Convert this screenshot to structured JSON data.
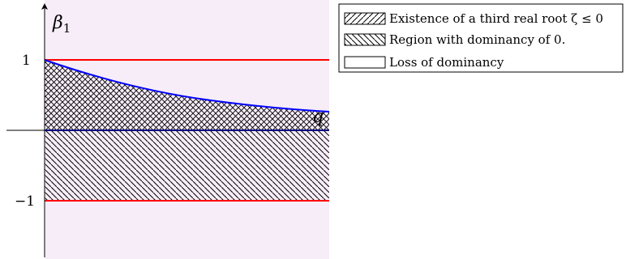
{
  "axes": {
    "y_label": "β",
    "y_label_subscript": "1",
    "x_label": "q",
    "ticks": [
      "1",
      "−1"
    ]
  },
  "legend": {
    "items": [
      {
        "label": "Existence of a third real root ζ ≤ 0",
        "pattern": "north-east-lines"
      },
      {
        "label": "Region with dominancy of 0.",
        "pattern": "north-west-lines"
      },
      {
        "label": "Loss of dominancy",
        "pattern": "none"
      }
    ]
  },
  "colors": {
    "loss_region_fill": "#f6edf8",
    "red_boundary": "#ff0000",
    "blue_boundary": "#0000ff",
    "hatch": "#000000"
  }
}
